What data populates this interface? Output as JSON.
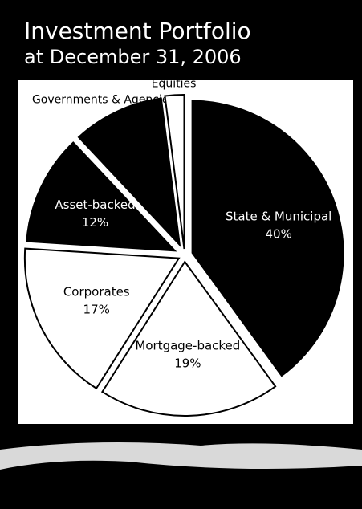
{
  "chart_data": {
    "type": "pie",
    "title": "Investment Portfolio",
    "subtitle": "at December 31, 2006",
    "categories": [
      "State & Municipal",
      "Mortgage-backed",
      "Corporates",
      "Asset-backed",
      "Governments & Agencies",
      "Equities"
    ],
    "values": [
      40,
      19,
      17,
      12,
      10,
      2
    ],
    "value_labels": [
      "40%",
      "19%",
      "17%",
      "12%",
      null,
      null
    ],
    "colors": [
      "#000000",
      "#ffffff",
      "#ffffff",
      "#000000",
      "#000000",
      "#ffffff"
    ]
  }
}
